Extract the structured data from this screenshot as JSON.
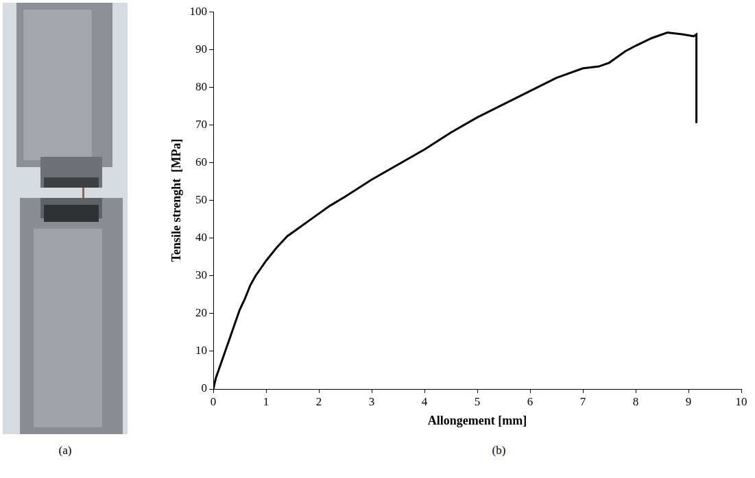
{
  "panel_labels": [
    "(a)",
    "(b)"
  ],
  "chart_data": {
    "type": "line",
    "x_label": "Allongement [mm]",
    "y_label": "Tensile strenght  [MPa]",
    "x": [
      0,
      0.05,
      0.1,
      0.2,
      0.3,
      0.4,
      0.5,
      0.6,
      0.7,
      0.8,
      0.9,
      1.0,
      1.2,
      1.4,
      1.6,
      1.8,
      2.0,
      2.2,
      2.5,
      3.0,
      3.5,
      4.0,
      4.5,
      5.0,
      5.5,
      6.0,
      6.5,
      7.0,
      7.3,
      7.5,
      7.8,
      8.0,
      8.3,
      8.6,
      8.9,
      9.1,
      9.15,
      9.15
    ],
    "values": [
      0,
      3,
      5,
      9,
      13,
      17,
      21,
      24,
      27.5,
      30,
      32,
      34,
      37.5,
      40.5,
      42.5,
      44.5,
      46.5,
      48.5,
      51,
      55.5,
      59.5,
      63.5,
      68,
      72,
      75.5,
      79,
      82.5,
      85,
      85.5,
      86.5,
      89.5,
      91,
      93,
      94.5,
      94,
      93.5,
      94,
      70.5
    ],
    "color": "#000000",
    "xlim": [
      0,
      10
    ],
    "xticks": [
      0,
      1,
      2,
      3,
      4,
      5,
      6,
      7,
      8,
      9,
      10
    ],
    "ylim": [
      0,
      100
    ],
    "yticks": [
      0,
      10,
      20,
      30,
      40,
      50,
      60,
      70,
      80,
      90,
      100
    ],
    "grid": false
  }
}
